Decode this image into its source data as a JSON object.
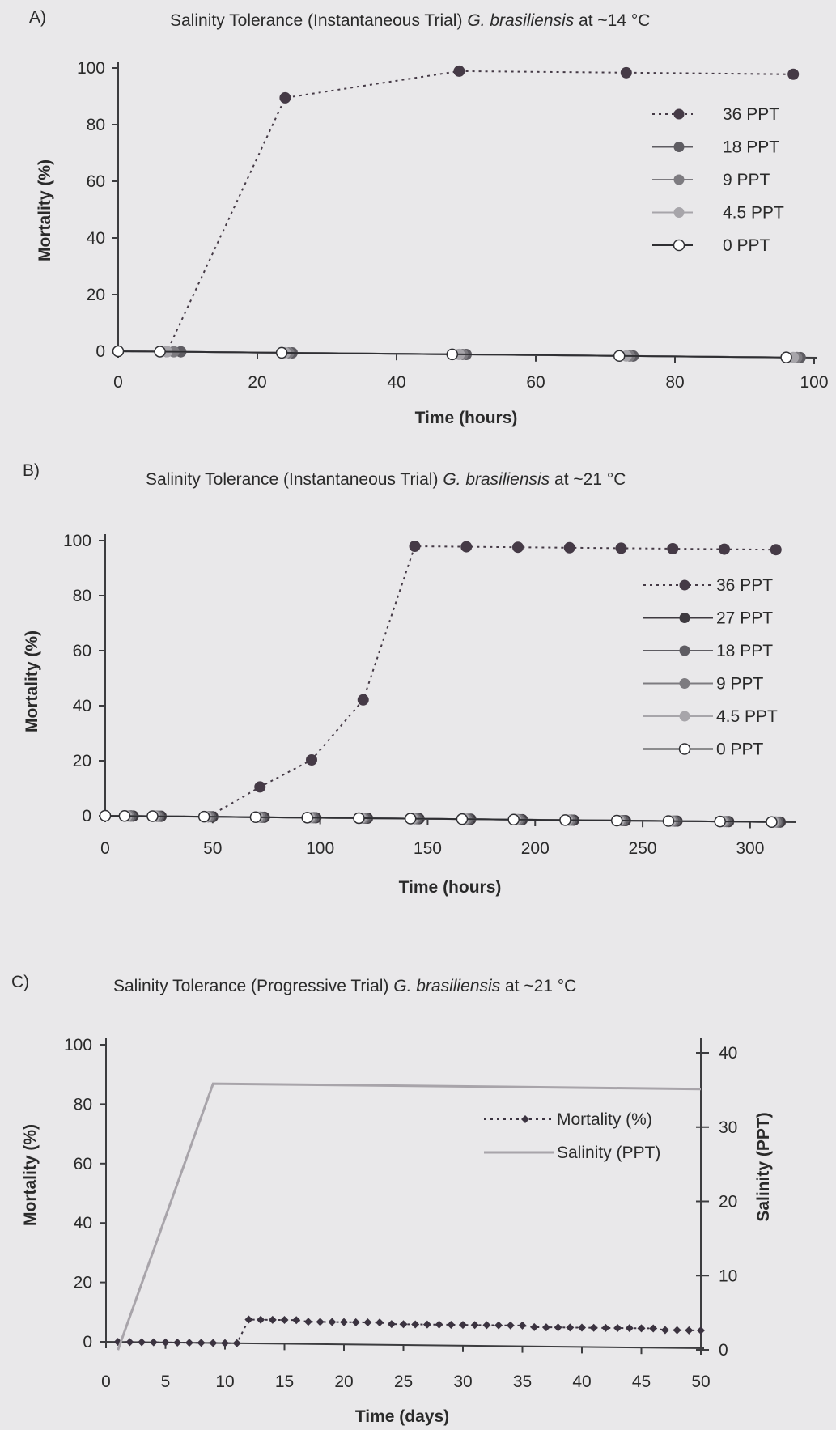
{
  "chart_data": [
    {
      "type": "line",
      "panel_label": "A)",
      "title_parts": [
        "Salinity Tolerance (Instantaneous Trial) ",
        "G. brasiliensis",
        " at ~14 °C"
      ],
      "xlabel": "Time (hours)",
      "ylabel": "Mortality (%)",
      "xlim": [
        0,
        100
      ],
      "ylim": [
        0,
        100
      ],
      "xticks": [
        0,
        20,
        40,
        60,
        80,
        100
      ],
      "yticks": [
        0,
        20,
        40,
        60,
        80,
        100
      ],
      "grid": false,
      "legend_position": "right",
      "series": [
        {
          "name": "36 PPT",
          "color": "#453a46",
          "line": "dotted",
          "marker": "filled",
          "x": [
            0,
            7,
            24,
            49,
            73,
            97
          ],
          "y": [
            0,
            0,
            90,
            100,
            100,
            100
          ]
        },
        {
          "name": "18 PPT",
          "color": "#5e5c62",
          "line": "solid",
          "marker": "filled",
          "x": [
            0,
            9,
            25,
            50,
            74,
            98
          ],
          "y": [
            0,
            0,
            0,
            0,
            0,
            0
          ]
        },
        {
          "name": "9 PPT",
          "color": "#7d7b80",
          "line": "solid",
          "marker": "filled",
          "x": [
            0,
            8,
            24.5,
            49.5,
            73.5,
            97.5
          ],
          "y": [
            0,
            0,
            0,
            0,
            0,
            0
          ]
        },
        {
          "name": "4.5 PPT",
          "color": "#a7a5aa",
          "line": "solid",
          "marker": "filled",
          "x": [
            0,
            7,
            24,
            49,
            73,
            97
          ],
          "y": [
            0,
            0,
            0,
            0,
            0,
            0
          ]
        },
        {
          "name": "0 PPT",
          "color": "#2f2f33",
          "line": "solid",
          "marker": "open",
          "x": [
            0,
            6,
            23.5,
            48,
            72,
            96
          ],
          "y": [
            0,
            0,
            0,
            0,
            0,
            0
          ]
        }
      ]
    },
    {
      "type": "line",
      "panel_label": "B)",
      "title_parts": [
        "Salinity Tolerance (Instantaneous Trial) ",
        "G. brasiliensis",
        " at ~21 °C"
      ],
      "xlabel": "Time (hours)",
      "ylabel": "Mortality (%)",
      "xlim": [
        0,
        320
      ],
      "ylim": [
        0,
        100
      ],
      "xticks": [
        0,
        50,
        100,
        150,
        200,
        250,
        300
      ],
      "yticks": [
        0,
        20,
        40,
        60,
        80,
        100
      ],
      "grid": false,
      "legend_position": "right",
      "series": [
        {
          "name": "36 PPT",
          "color": "#453a46",
          "line": "dotted",
          "marker": "filled",
          "x": [
            0,
            12,
            24,
            48,
            72,
            96,
            120,
            144,
            168,
            192,
            216,
            240,
            264,
            288,
            312
          ],
          "y": [
            0,
            0,
            0,
            0,
            11,
            21,
            43,
            99,
            99,
            99,
            99,
            99,
            99,
            99,
            99
          ]
        },
        {
          "name": "27 PPT",
          "color": "#3e3a40",
          "line": "solid",
          "marker": "filled",
          "x": [
            0,
            13,
            26,
            50,
            74,
            98,
            122,
            146,
            170,
            194,
            218,
            242,
            266,
            290,
            314
          ],
          "y": [
            0,
            0,
            0,
            0,
            0,
            0,
            0,
            0,
            0,
            0,
            0,
            0,
            0,
            0,
            0
          ]
        },
        {
          "name": "18 PPT",
          "color": "#5e5c62",
          "line": "solid",
          "marker": "filled",
          "x": [
            0,
            12,
            25,
            49,
            73,
            97,
            121,
            145,
            169,
            193,
            217,
            241,
            265,
            289,
            313
          ],
          "y": [
            0,
            0,
            0,
            0,
            0,
            0,
            0,
            0,
            0,
            0,
            0,
            0,
            0,
            0,
            0
          ]
        },
        {
          "name": "9 PPT",
          "color": "#7d7b80",
          "line": "solid",
          "marker": "filled",
          "x": [
            0,
            11,
            24,
            48,
            72,
            96,
            120,
            144,
            168,
            192,
            216,
            240,
            264,
            288,
            312
          ],
          "y": [
            0,
            0,
            0,
            0,
            0,
            0,
            0,
            0,
            0,
            0,
            0,
            0,
            0,
            0,
            0
          ]
        },
        {
          "name": "4.5 PPT",
          "color": "#a7a5aa",
          "line": "solid",
          "marker": "filled",
          "x": [
            0,
            10,
            23,
            47,
            71,
            95,
            119,
            143,
            167,
            191,
            215,
            239,
            263,
            287,
            311
          ],
          "y": [
            0,
            0,
            0,
            0,
            0,
            0,
            0,
            0,
            0,
            0,
            0,
            0,
            0,
            0,
            0
          ]
        },
        {
          "name": "0 PPT",
          "color": "#2f2f33",
          "line": "solid",
          "marker": "open",
          "x": [
            0,
            9,
            22,
            46,
            70,
            94,
            118,
            142,
            166,
            190,
            214,
            238,
            262,
            286,
            310
          ],
          "y": [
            0,
            0,
            0,
            0,
            0,
            0,
            0,
            0,
            0,
            0,
            0,
            0,
            0,
            0,
            0
          ]
        }
      ]
    },
    {
      "type": "line",
      "panel_label": "C)",
      "title_parts": [
        "Salinity Tolerance (Progressive Trial) ",
        "G. brasiliensis",
        " at ~21 °C"
      ],
      "xlabel": "Time (days)",
      "ylabel": "Mortality (%)",
      "y2label": "Salinity (PPT)",
      "xlim": [
        0,
        50
      ],
      "ylim": [
        0,
        100
      ],
      "y2lim": [
        0,
        40
      ],
      "xticks": [
        0,
        5,
        10,
        15,
        20,
        25,
        30,
        35,
        40,
        45,
        50
      ],
      "yticks": [
        0,
        20,
        40,
        60,
        80,
        100
      ],
      "y2ticks": [
        0,
        10,
        20,
        30,
        40
      ],
      "grid": false,
      "legend_position": "right",
      "series": [
        {
          "name": "Mortality (%)",
          "axis": "left",
          "color": "#3b3340",
          "line": "dotted",
          "marker": "diamond",
          "x": [
            1,
            2,
            3,
            4,
            5,
            6,
            7,
            8,
            9,
            10,
            11,
            12,
            13,
            14,
            15,
            16,
            17,
            18,
            19,
            20,
            21,
            22,
            23,
            24,
            25,
            26,
            27,
            28,
            29,
            30,
            31,
            32,
            33,
            34,
            35,
            36,
            37,
            38,
            39,
            40,
            41,
            42,
            43,
            44,
            45,
            46,
            47,
            48,
            49,
            50
          ],
          "y": [
            0,
            0,
            0,
            0,
            0,
            0,
            0,
            0,
            0,
            0,
            0,
            8,
            8,
            8,
            8,
            8,
            7.5,
            7.5,
            7.5,
            7.5,
            7.5,
            7.5,
            7.5,
            7,
            7,
            7,
            7,
            7,
            7,
            7,
            7,
            7,
            7,
            7,
            7,
            6.5,
            6.5,
            6.5,
            6.5,
            6.5,
            6.5,
            6.5,
            6.5,
            6.5,
            6.5,
            6.5,
            6,
            6,
            6,
            6
          ]
        },
        {
          "name": "Salinity (PPT)",
          "axis": "right",
          "color": "#a8a4aa",
          "line": "solid",
          "marker": "none",
          "x": [
            1,
            9,
            50
          ],
          "y": [
            0,
            36,
            36
          ]
        }
      ]
    }
  ]
}
